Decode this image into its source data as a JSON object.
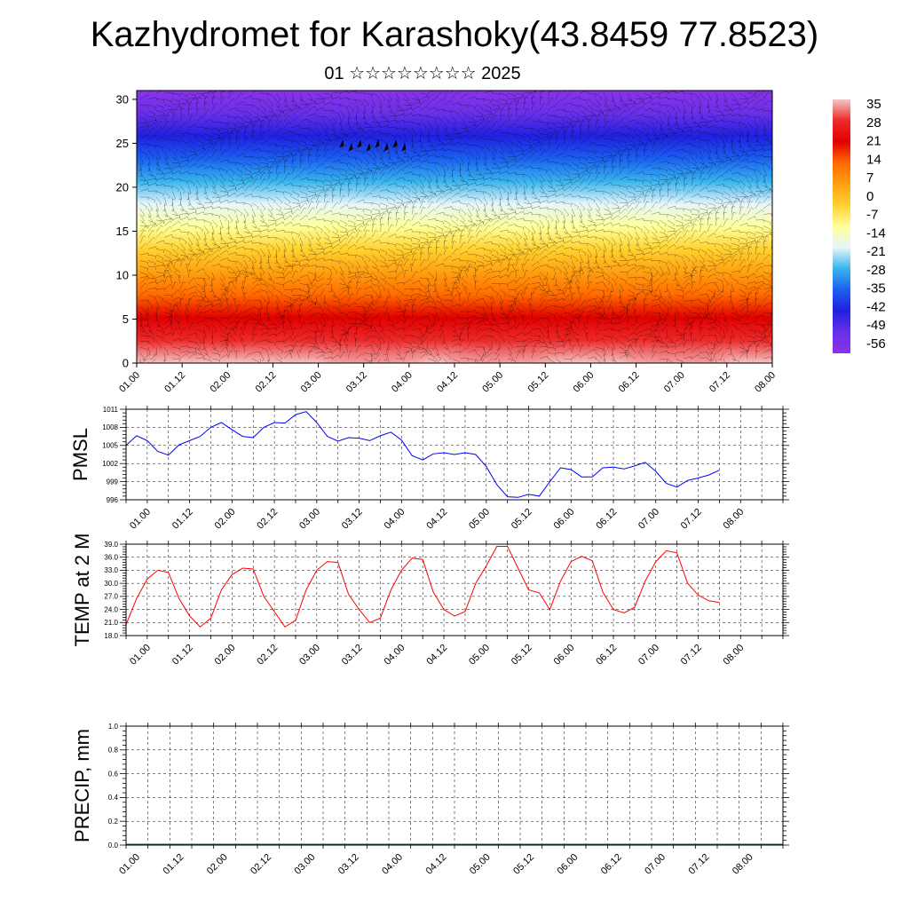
{
  "title": "Kazhydromet for Karashoky(43.8459 77.8523)",
  "subtitle": "01 ☆☆☆☆☆☆☆☆ 2025",
  "time_labels": [
    "01.00",
    "01.12",
    "02.00",
    "02.12",
    "03.00",
    "03.12",
    "04.00",
    "04.12",
    "05.00",
    "05.12",
    "06.00",
    "06.12",
    "07.00",
    "07.12",
    "08.00"
  ],
  "chart_data": [
    {
      "type": "heatmap",
      "name": "cross-section",
      "ylim": [
        0,
        31
      ],
      "y_ticks": [
        0,
        5,
        10,
        15,
        20,
        25,
        30
      ],
      "colorbar_labels": [
        "35",
        "28",
        "21",
        "14",
        "7",
        "0",
        "-7",
        "-14",
        "-21",
        "-28",
        "-35",
        "-42",
        "-49",
        "-56"
      ],
      "color_stops": [
        "#f4c4c4",
        "#ee2a2a",
        "#e00000",
        "#ff6a00",
        "#ff9f10",
        "#ffd230",
        "#ffff9a",
        "#e8f6f8",
        "#38b4ee",
        "#1a60f0",
        "#2020e0",
        "#6a30e8",
        "#8a32e8"
      ]
    },
    {
      "type": "line",
      "ylabel": "PMSL",
      "ylim": [
        996,
        1011
      ],
      "y_ticks": [
        996,
        999,
        1002,
        1005,
        1008,
        1011
      ],
      "x": [
        0,
        3,
        6,
        9,
        12,
        15,
        18,
        21,
        24,
        27,
        30,
        33,
        36,
        39,
        42,
        45,
        48,
        51,
        54,
        57,
        60,
        63,
        66,
        69,
        72,
        75,
        78,
        81,
        84,
        87,
        90,
        93,
        96,
        99,
        102,
        105,
        108,
        111,
        114,
        117,
        120,
        123,
        126,
        129,
        132,
        135,
        138,
        141,
        144,
        147,
        150,
        153,
        156,
        159,
        162,
        165,
        168
      ],
      "values": [
        1005,
        1006.6,
        1005.8,
        1004,
        1003.4,
        1005.1,
        1005.8,
        1006.5,
        1008,
        1008.8,
        1007.6,
        1006.5,
        1006.3,
        1008,
        1008.8,
        1008.7,
        1010.1,
        1010.6,
        1008.8,
        1006.5,
        1005.7,
        1006.3,
        1006.2,
        1005.8,
        1006.6,
        1007.2,
        1005.9,
        1003.3,
        1002.6,
        1003.6,
        1003.8,
        1003.5,
        1003.8,
        1003.5,
        1001.5,
        998.5,
        996.5,
        996.4,
        996.9,
        996.6,
        999,
        1001.3,
        1001,
        999.8,
        999.8,
        1001.3,
        1001.4,
        1001.1,
        1001.6,
        1002.2,
        1000.7,
        998.7,
        998.1,
        999.2,
        999.6,
        1000.1,
        1000.9
      ],
      "color": "#0000ff"
    },
    {
      "type": "line",
      "ylabel": "TEMP at 2 M",
      "ylim": [
        18,
        39
      ],
      "y_ticks": [
        "18.0",
        "21.0",
        "24.0",
        "27.0",
        "30.0",
        "33.0",
        "36.0",
        "39.0"
      ],
      "x": [
        0,
        3,
        6,
        9,
        12,
        15,
        18,
        21,
        24,
        27,
        30,
        33,
        36,
        39,
        42,
        45,
        48,
        51,
        54,
        57,
        60,
        63,
        66,
        69,
        72,
        75,
        78,
        81,
        84,
        87,
        90,
        93,
        96,
        99,
        102,
        105,
        108,
        111,
        114,
        117,
        120,
        123,
        126,
        129,
        132,
        135,
        138,
        141,
        144,
        147,
        150,
        153,
        156,
        159,
        162,
        165,
        168
      ],
      "values": [
        20.5,
        26.5,
        31,
        33,
        32.5,
        26.5,
        22.5,
        20,
        22,
        28.5,
        32,
        33.5,
        33.3,
        27,
        23.5,
        20,
        21.5,
        28.5,
        33,
        35,
        34.8,
        27.5,
        24,
        21,
        22,
        28.5,
        33,
        35.8,
        35.5,
        28,
        24,
        22.5,
        23.5,
        30,
        34,
        38.5,
        38.5,
        33.5,
        28.5,
        27.8,
        24,
        30.5,
        35,
        36.2,
        35.2,
        28,
        24,
        23.2,
        24.5,
        30.5,
        35,
        37.5,
        37,
        30,
        27.3,
        26,
        25.6
      ],
      "color": "#ff0000"
    },
    {
      "type": "bar",
      "ylabel": "PRECIP, mm",
      "ylim": [
        0,
        1
      ],
      "y_ticks": [
        "0.0",
        "0.2",
        "0.4",
        "0.6",
        "0.8",
        "1.0"
      ],
      "values": [
        0
      ]
    }
  ]
}
